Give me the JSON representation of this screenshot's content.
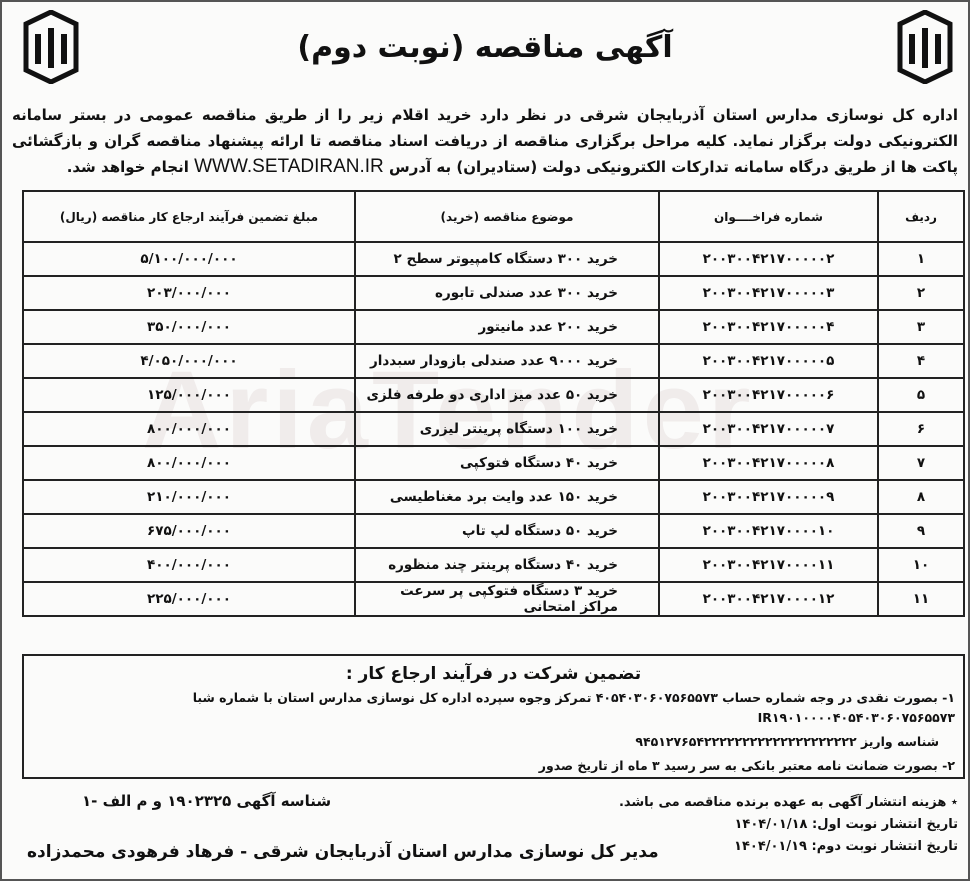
{
  "header": {
    "title": "آگهی مناقصه (نوبت دوم)",
    "watermark": "AriaTender"
  },
  "intro": {
    "text": "اداره کل نوسازی مدارس استان آذربایجان شرقی در نظر دارد خرید اقلام زیر را از طریق مناقصه عمومی در بستر سامانه الکترونیکی دولت برگزار نماید. کلیه مراحل برگزاری مناقصه از دریافت اسناد مناقصه تا ارائه پیشنهاد مناقصه گران و بازگشائی پاکت ها از طریق درگاه سامانه تدارکات الکترونیکی دولت (ستادیران) به آدرس",
    "url": "WWW.SETADIRAN.IR",
    "tail": "انجام خواهد شد."
  },
  "table": {
    "headers": [
      "ردیف",
      "شماره فراخــــوان",
      "موضوع مناقصه (خرید)",
      "مبلغ تضمین فرآیند ارجاع کار مناقصه (ریال)"
    ],
    "rows": [
      [
        "۱",
        "۲۰۰۳۰۰۴۲۱۷۰۰۰۰۰۲",
        "خرید ۳۰۰ دستگاه کامپیوتر سطح ۲",
        "۵/۱۰۰/۰۰۰/۰۰۰"
      ],
      [
        "۲",
        "۲۰۰۳۰۰۴۲۱۷۰۰۰۰۰۳",
        "خرید ۳۰۰ عدد صندلی تابوره",
        "۲۰۳/۰۰۰/۰۰۰"
      ],
      [
        "۳",
        "۲۰۰۳۰۰۴۲۱۷۰۰۰۰۰۴",
        "خرید ۲۰۰ عدد مانیتور",
        "۳۵۰/۰۰۰/۰۰۰"
      ],
      [
        "۴",
        "۲۰۰۳۰۰۴۲۱۷۰۰۰۰۰۵",
        "خرید ۹۰۰۰ عدد صندلی بازودار سبددار",
        "۴/۰۵۰/۰۰۰/۰۰۰"
      ],
      [
        "۵",
        "۲۰۰۳۰۰۴۲۱۷۰۰۰۰۰۶",
        "خرید ۵۰ عدد میز اداری دو طرفه فلزی",
        "۱۲۵/۰۰۰/۰۰۰"
      ],
      [
        "۶",
        "۲۰۰۳۰۰۴۲۱۷۰۰۰۰۰۷",
        "خرید ۱۰۰ دستگاه پرینتر لیزری",
        "۸۰۰/۰۰۰/۰۰۰"
      ],
      [
        "۷",
        "۲۰۰۳۰۰۴۲۱۷۰۰۰۰۰۸",
        "خرید ۴۰ دستگاه فتوکپی",
        "۸۰۰/۰۰۰/۰۰۰"
      ],
      [
        "۸",
        "۲۰۰۳۰۰۴۲۱۷۰۰۰۰۰۹",
        "خرید ۱۵۰ عدد وایت برد مغناطیسی",
        "۲۱۰/۰۰۰/۰۰۰"
      ],
      [
        "۹",
        "۲۰۰۳۰۰۴۲۱۷۰۰۰۰۱۰",
        "خرید ۵۰ دستگاه لپ تاپ",
        "۶۷۵/۰۰۰/۰۰۰"
      ],
      [
        "۱۰",
        "۲۰۰۳۰۰۴۲۱۷۰۰۰۰۱۱",
        "خرید ۴۰ دستگاه پرینتر چند منظوره",
        "۴۰۰/۰۰۰/۰۰۰"
      ],
      [
        "۱۱",
        "۲۰۰۳۰۰۴۲۱۷۰۰۰۰۱۲",
        "خرید ۳ دستگاه فتوکپی پر سرعت مراکز امتحانی",
        "۲۲۵/۰۰۰/۰۰۰"
      ]
    ]
  },
  "guarantee": {
    "title": "تضمین شرکت در فرآیند ارجاع کار :",
    "line1": "۱- بصورت نقدی در وجه شماره حساب ۴۰۵۴۰۳۰۶۰۷۵۶۵۵۷۳ تمرکز وجوه سپرده اداره کل نوسازی مدارس استان با شماره شبا IR۱۹۰۱۰۰۰۰۴۰۵۴۰۳۰۶۰۷۵۶۵۵۷۳",
    "line2": "شناسه واریز ۹۴۵۱۲۷۶۵۴۲۲۲۲۲۲۲۲۲۲۲۲۲۲۲۲۲۲۲۲",
    "line3": "۲- بصورت ضمانت نامه معتبر بانکی به سر رسید ۳ ماه از تاریخ صدور"
  },
  "footer": {
    "ad_id": "شناسه آگهی ۱۹۰۲۳۲۵ و م الف -۱",
    "cost_note": "٭ هزینه انتشار آگهی به عهده برنده مناقصه می باشد.",
    "first_date": "تاریخ انتشار نوبت اول: ۱۴۰۴/۰۱/۱۸",
    "second_date": "تاریخ انتشار نوبت دوم: ۱۴۰۴/۰۱/۱۹",
    "signature": "مدیر کل نوسازی مدارس استان آذربایجان شرقی - فرهاد فرهودی محمدزاده"
  }
}
